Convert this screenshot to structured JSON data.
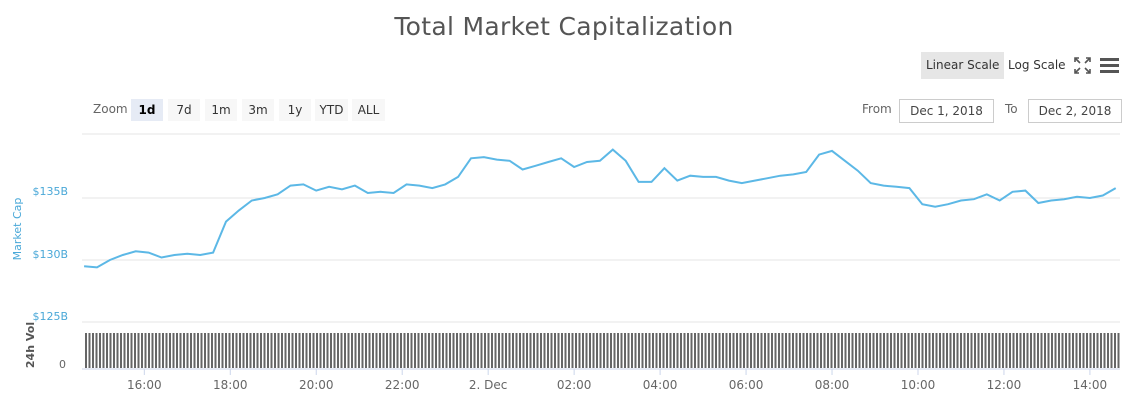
{
  "title": "Total Market Capitalization",
  "scale": {
    "linear_label": "Linear Scale",
    "log_label": "Log Scale",
    "active": "linear"
  },
  "icons": {
    "fullscreen": "fullscreen-icon",
    "menu": "hamburger-menu-icon"
  },
  "zoom": {
    "label": "Zoom",
    "options": [
      "1d",
      "7d",
      "1m",
      "3m",
      "1y",
      "YTD",
      "ALL"
    ],
    "selected": "1d"
  },
  "range": {
    "from_label": "From",
    "from_value": "Dec 1, 2018",
    "to_label": "To",
    "to_value": "Dec 2, 2018"
  },
  "colors": {
    "line": "#5cb8e6",
    "volume": "#666666",
    "axis_title": "#4aa8d8"
  },
  "chart_data": {
    "type": "line",
    "title": "Total Market Capitalization",
    "ylabel": "Market Cap",
    "volume_label": "24h Vol",
    "y_ticks": [
      "$135B",
      "$130B",
      "$125B"
    ],
    "volume_ticks": [
      "0"
    ],
    "x_ticks": [
      "16:00",
      "18:00",
      "20:00",
      "22:00",
      "2. Dec",
      "02:00",
      "04:00",
      "06:00",
      "08:00",
      "10:00",
      "12:00",
      "14:00"
    ],
    "ylim": [
      125,
      140
    ],
    "grid": true,
    "x_hours": [
      14.6,
      14.9,
      15.2,
      15.5,
      15.8,
      16.1,
      16.4,
      16.7,
      17.0,
      17.3,
      17.6,
      17.9,
      18.2,
      18.5,
      18.8,
      19.1,
      19.4,
      19.7,
      20.0,
      20.3,
      20.6,
      20.9,
      21.2,
      21.5,
      21.8,
      22.1,
      22.4,
      22.7,
      23.0,
      23.3,
      23.6,
      23.9,
      24.2,
      24.5,
      24.8,
      25.1,
      25.4,
      25.7,
      26.0,
      26.3,
      26.6,
      26.9,
      27.2,
      27.5,
      27.8,
      28.1,
      28.4,
      28.7,
      29.0,
      29.3,
      29.6,
      29.9,
      30.2,
      30.5,
      30.8,
      31.1,
      31.4,
      31.7,
      32.0,
      32.3,
      32.6,
      32.9,
      33.2,
      33.5,
      33.8,
      34.1,
      34.4,
      34.7,
      35.0,
      35.3,
      35.6,
      35.9,
      36.2,
      36.5,
      36.8,
      37.1,
      37.4,
      37.7,
      38.0,
      38.3,
      38.6
    ],
    "values": [
      129.5,
      129.4,
      130.0,
      130.4,
      130.7,
      130.6,
      130.2,
      130.4,
      130.5,
      130.4,
      130.6,
      133.1,
      134.0,
      134.8,
      135.0,
      135.3,
      136.0,
      136.1,
      135.6,
      135.9,
      135.7,
      136.0,
      135.4,
      135.5,
      135.4,
      136.1,
      136.0,
      135.8,
      136.1,
      136.7,
      138.2,
      138.3,
      138.1,
      138.0,
      137.3,
      137.6,
      137.9,
      138.2,
      137.5,
      137.9,
      138.0,
      138.9,
      138.0,
      136.3,
      136.3,
      137.4,
      136.4,
      136.8,
      136.7,
      136.7,
      136.4,
      136.2,
      136.4,
      136.6,
      136.8,
      136.9,
      137.1,
      138.5,
      138.8,
      138.0,
      137.2,
      136.2,
      136.0,
      135.9,
      135.8,
      134.5,
      134.3,
      134.5,
      134.8,
      134.9,
      135.3,
      134.8,
      135.5,
      135.6,
      134.6,
      134.8,
      134.9,
      135.1,
      135.0,
      135.2,
      135.8
    ]
  }
}
